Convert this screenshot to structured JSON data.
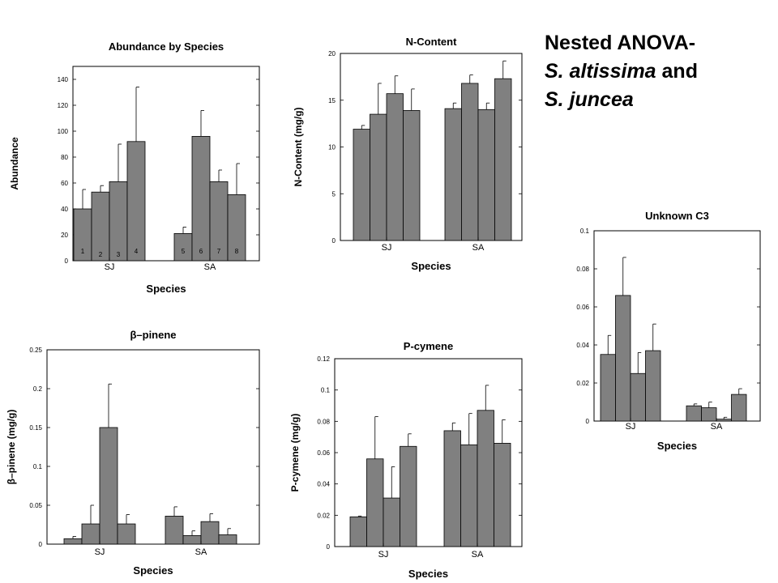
{
  "slide": {
    "title_line1": "Nested ANOVA-",
    "title_line2_italic": "S. altissima",
    "title_line2_rest": " and",
    "title_line3_italic": "S. juncea"
  },
  "style": {
    "bar_fill": "#808080",
    "stroke": "#000000"
  },
  "chart_data": [
    {
      "type": "bar",
      "title": "Abundance by Species",
      "xlabel": "Species",
      "ylabel": "Abundance",
      "groups": [
        "SJ",
        "SA"
      ],
      "bar_numbers": [
        "1",
        "2",
        "3",
        "4",
        "5",
        "6",
        "7",
        "8"
      ],
      "values": [
        [
          40,
          53,
          61,
          92
        ],
        [
          21,
          96,
          61,
          51
        ]
      ],
      "errors": [
        [
          15,
          5,
          29,
          42
        ],
        [
          5,
          20,
          9,
          24
        ]
      ],
      "ylim": [
        0,
        150
      ],
      "yticks": [
        0,
        20,
        40,
        60,
        80,
        100,
        120,
        140
      ],
      "ytick_labels": [
        "0",
        "20",
        "40",
        "60",
        "80",
        "100",
        "120",
        "140"
      ]
    },
    {
      "type": "bar",
      "title": "N-Content",
      "xlabel": "Species",
      "ylabel": "N-Content (mg/g)",
      "groups": [
        "SJ",
        "SA"
      ],
      "values": [
        [
          11.9,
          13.5,
          15.7,
          13.9
        ],
        [
          14.1,
          16.8,
          14.0,
          17.3
        ]
      ],
      "errors": [
        [
          0.4,
          3.3,
          1.9,
          2.3
        ],
        [
          0.6,
          0.9,
          0.7,
          1.9
        ]
      ],
      "ylim": [
        0,
        20
      ],
      "yticks": [
        0,
        5,
        10,
        15,
        20
      ],
      "ytick_labels": [
        "0",
        "5",
        "10",
        "15",
        "20"
      ]
    },
    {
      "type": "bar",
      "title": "Unknown C3",
      "xlabel": "Species",
      "ylabel": "",
      "groups": [
        "SJ",
        "SA"
      ],
      "values": [
        [
          0.035,
          0.066,
          0.025,
          0.037
        ],
        [
          0.008,
          0.007,
          0.001,
          0.014
        ]
      ],
      "errors": [
        [
          0.01,
          0.02,
          0.011,
          0.014
        ],
        [
          0.001,
          0.003,
          0.001,
          0.003
        ]
      ],
      "ylim": [
        0,
        0.1
      ],
      "yticks": [
        0,
        0.02,
        0.04,
        0.06,
        0.08,
        0.1
      ],
      "ytick_labels": [
        "0",
        "0.02",
        "0.04",
        "0.06",
        "0.08",
        "0.1"
      ]
    },
    {
      "type": "bar",
      "title": "β–pinene",
      "xlabel": "Species",
      "ylabel": "β–pinene (mg/g)",
      "groups": [
        "SJ",
        "SA"
      ],
      "values": [
        [
          0.007,
          0.026,
          0.15,
          0.026
        ],
        [
          0.036,
          0.011,
          0.029,
          0.012
        ]
      ],
      "errors": [
        [
          0.003,
          0.024,
          0.056,
          0.012
        ],
        [
          0.012,
          0.006,
          0.01,
          0.008
        ]
      ],
      "ylim": [
        0,
        0.25
      ],
      "yticks": [
        0,
        0.05,
        0.1,
        0.15,
        0.2,
        0.25
      ],
      "ytick_labels": [
        "0",
        "0.05",
        "0.1",
        "0.15",
        "0.2",
        "0.25"
      ]
    },
    {
      "type": "bar",
      "title": "P-cymene",
      "xlabel": "Species",
      "ylabel": "P-cymene (mg/g)",
      "groups": [
        "SJ",
        "SA"
      ],
      "values": [
        [
          0.019,
          0.056,
          0.031,
          0.064
        ],
        [
          0.074,
          0.065,
          0.087,
          0.066
        ]
      ],
      "errors": [
        [
          0.0005,
          0.027,
          0.02,
          0.008
        ],
        [
          0.005,
          0.02,
          0.016,
          0.015
        ]
      ],
      "ylim": [
        0,
        0.12
      ],
      "yticks": [
        0,
        0.02,
        0.04,
        0.06,
        0.08,
        0.1,
        0.12
      ],
      "ytick_labels": [
        "0",
        "0.02",
        "0.04",
        "0.06",
        "0.08",
        "0.1",
        "0.12"
      ]
    }
  ]
}
